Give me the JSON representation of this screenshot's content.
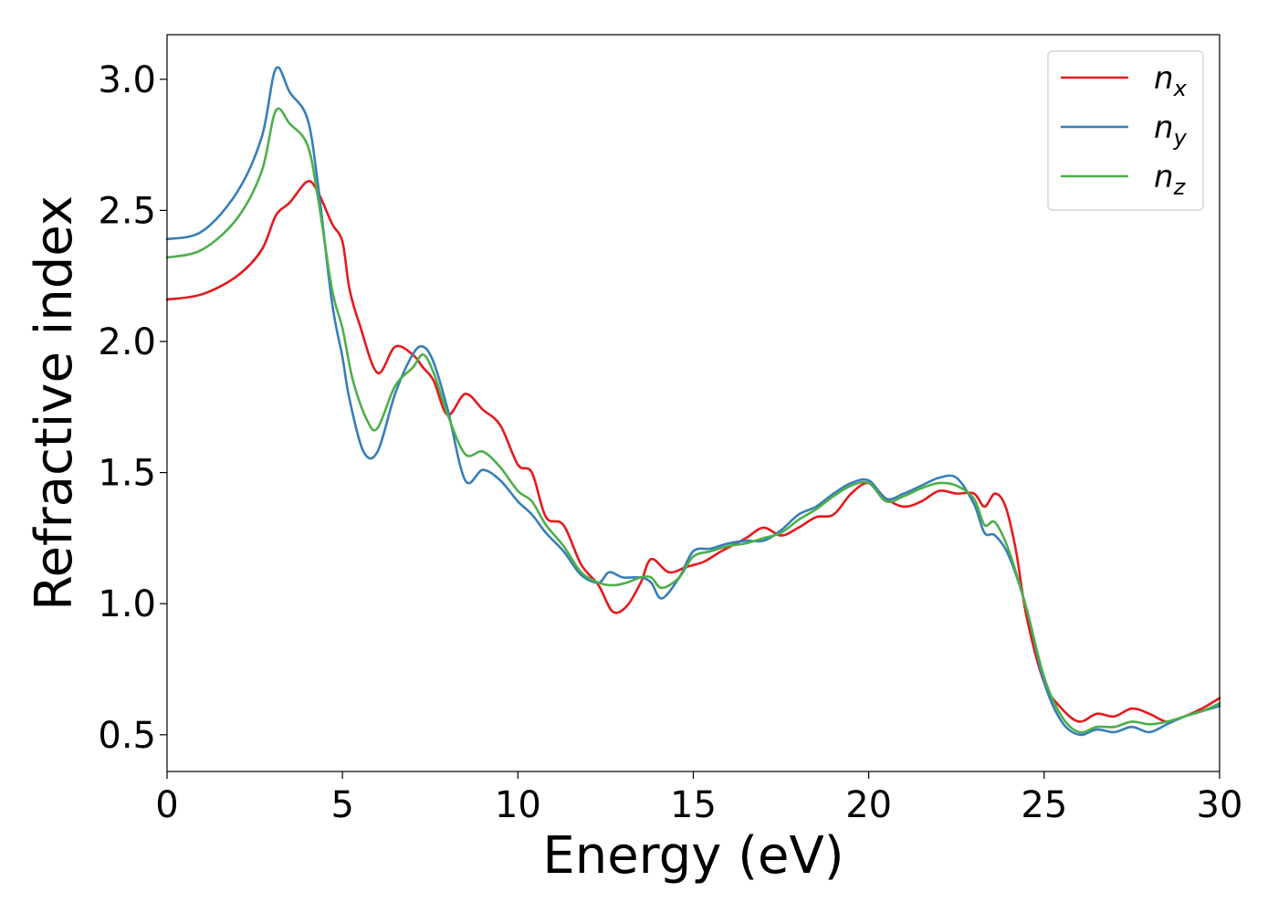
{
  "chart_data": {
    "type": "line",
    "xlabel": "Energy (eV)",
    "ylabel": "Refractive index",
    "xlim": [
      0,
      30
    ],
    "ylim": [
      0.36,
      3.17
    ],
    "xticks": [
      0,
      5,
      10,
      15,
      20,
      25,
      30
    ],
    "xtick_labels": [
      "0",
      "5",
      "10",
      "15",
      "20",
      "25",
      "30"
    ],
    "yticks": [
      0.5,
      1.0,
      1.5,
      2.0,
      2.5,
      3.0
    ],
    "ytick_labels": [
      "0.5",
      "1.0",
      "1.5",
      "2.0",
      "2.5",
      "3.0"
    ],
    "grid": false,
    "legend_position": "top-right",
    "series": [
      {
        "name": "n",
        "subscript": "x",
        "color": "#e41a1c",
        "points": [
          [
            0,
            2.16
          ],
          [
            1,
            2.18
          ],
          [
            2,
            2.25
          ],
          [
            2.7,
            2.35
          ],
          [
            3.1,
            2.48
          ],
          [
            3.5,
            2.53
          ],
          [
            4.0,
            2.61
          ],
          [
            4.3,
            2.57
          ],
          [
            4.7,
            2.45
          ],
          [
            5.0,
            2.38
          ],
          [
            5.2,
            2.2
          ],
          [
            5.5,
            2.06
          ],
          [
            6.0,
            1.88
          ],
          [
            6.5,
            1.98
          ],
          [
            7.0,
            1.95
          ],
          [
            7.3,
            1.9
          ],
          [
            7.6,
            1.85
          ],
          [
            8.0,
            1.72
          ],
          [
            8.5,
            1.8
          ],
          [
            9.0,
            1.74
          ],
          [
            9.5,
            1.68
          ],
          [
            10.0,
            1.53
          ],
          [
            10.4,
            1.5
          ],
          [
            10.8,
            1.33
          ],
          [
            11.3,
            1.3
          ],
          [
            11.8,
            1.15
          ],
          [
            12.3,
            1.07
          ],
          [
            12.7,
            0.97
          ],
          [
            13.1,
            0.99
          ],
          [
            13.5,
            1.08
          ],
          [
            13.8,
            1.17
          ],
          [
            14.3,
            1.12
          ],
          [
            14.8,
            1.14
          ],
          [
            15.3,
            1.16
          ],
          [
            15.8,
            1.2
          ],
          [
            16.5,
            1.25
          ],
          [
            17.0,
            1.29
          ],
          [
            17.5,
            1.26
          ],
          [
            18.0,
            1.29
          ],
          [
            18.5,
            1.33
          ],
          [
            19.0,
            1.34
          ],
          [
            19.5,
            1.42
          ],
          [
            20.0,
            1.46
          ],
          [
            20.5,
            1.4
          ],
          [
            21.0,
            1.37
          ],
          [
            21.5,
            1.39
          ],
          [
            22.0,
            1.43
          ],
          [
            22.5,
            1.42
          ],
          [
            23.0,
            1.42
          ],
          [
            23.3,
            1.37
          ],
          [
            23.6,
            1.42
          ],
          [
            23.9,
            1.37
          ],
          [
            24.2,
            1.2
          ],
          [
            24.5,
            0.95
          ],
          [
            25.0,
            0.7
          ],
          [
            25.5,
            0.6
          ],
          [
            26.0,
            0.55
          ],
          [
            26.5,
            0.58
          ],
          [
            27.0,
            0.57
          ],
          [
            27.5,
            0.6
          ],
          [
            28.0,
            0.58
          ],
          [
            28.5,
            0.55
          ],
          [
            29.0,
            0.57
          ],
          [
            29.5,
            0.6
          ],
          [
            30.0,
            0.64
          ]
        ]
      },
      {
        "name": "n",
        "subscript": "y",
        "color": "#377eb8",
        "points": [
          [
            0,
            2.39
          ],
          [
            1,
            2.42
          ],
          [
            2,
            2.57
          ],
          [
            2.7,
            2.78
          ],
          [
            3.1,
            3.04
          ],
          [
            3.5,
            2.95
          ],
          [
            4.0,
            2.85
          ],
          [
            4.3,
            2.6
          ],
          [
            4.7,
            2.15
          ],
          [
            5.0,
            1.94
          ],
          [
            5.2,
            1.78
          ],
          [
            5.6,
            1.58
          ],
          [
            6.0,
            1.58
          ],
          [
            6.5,
            1.8
          ],
          [
            7.0,
            1.95
          ],
          [
            7.3,
            1.98
          ],
          [
            7.6,
            1.92
          ],
          [
            8.0,
            1.74
          ],
          [
            8.5,
            1.47
          ],
          [
            9.0,
            1.51
          ],
          [
            9.5,
            1.47
          ],
          [
            10.0,
            1.39
          ],
          [
            10.4,
            1.34
          ],
          [
            10.8,
            1.27
          ],
          [
            11.3,
            1.2
          ],
          [
            11.8,
            1.11
          ],
          [
            12.3,
            1.08
          ],
          [
            12.6,
            1.12
          ],
          [
            13.0,
            1.1
          ],
          [
            13.5,
            1.1
          ],
          [
            13.8,
            1.08
          ],
          [
            14.1,
            1.02
          ],
          [
            14.6,
            1.1
          ],
          [
            15.0,
            1.2
          ],
          [
            15.5,
            1.21
          ],
          [
            16.0,
            1.23
          ],
          [
            16.5,
            1.24
          ],
          [
            17.0,
            1.24
          ],
          [
            17.5,
            1.28
          ],
          [
            18.0,
            1.34
          ],
          [
            18.5,
            1.37
          ],
          [
            19.0,
            1.42
          ],
          [
            19.5,
            1.46
          ],
          [
            20.0,
            1.47
          ],
          [
            20.5,
            1.4
          ],
          [
            21.0,
            1.42
          ],
          [
            21.5,
            1.45
          ],
          [
            22.0,
            1.48
          ],
          [
            22.5,
            1.48
          ],
          [
            23.0,
            1.38
          ],
          [
            23.3,
            1.27
          ],
          [
            23.6,
            1.26
          ],
          [
            24.0,
            1.18
          ],
          [
            24.5,
            0.98
          ],
          [
            25.0,
            0.7
          ],
          [
            25.5,
            0.55
          ],
          [
            26.0,
            0.5
          ],
          [
            26.5,
            0.52
          ],
          [
            27.0,
            0.51
          ],
          [
            27.5,
            0.53
          ],
          [
            28.0,
            0.51
          ],
          [
            28.5,
            0.54
          ],
          [
            29.0,
            0.57
          ],
          [
            29.5,
            0.59
          ],
          [
            30.0,
            0.61
          ]
        ]
      },
      {
        "name": "n",
        "subscript": "z",
        "color": "#4daf4a",
        "points": [
          [
            0,
            2.32
          ],
          [
            1,
            2.35
          ],
          [
            2,
            2.47
          ],
          [
            2.7,
            2.65
          ],
          [
            3.1,
            2.88
          ],
          [
            3.5,
            2.83
          ],
          [
            4.0,
            2.75
          ],
          [
            4.3,
            2.55
          ],
          [
            4.7,
            2.2
          ],
          [
            5.0,
            2.05
          ],
          [
            5.3,
            1.85
          ],
          [
            5.7,
            1.7
          ],
          [
            6.0,
            1.67
          ],
          [
            6.5,
            1.83
          ],
          [
            7.0,
            1.9
          ],
          [
            7.3,
            1.95
          ],
          [
            7.6,
            1.88
          ],
          [
            8.0,
            1.72
          ],
          [
            8.5,
            1.57
          ],
          [
            9.0,
            1.58
          ],
          [
            9.5,
            1.52
          ],
          [
            10.0,
            1.43
          ],
          [
            10.4,
            1.39
          ],
          [
            10.8,
            1.3
          ],
          [
            11.3,
            1.22
          ],
          [
            11.8,
            1.12
          ],
          [
            12.3,
            1.08
          ],
          [
            12.7,
            1.07
          ],
          [
            13.1,
            1.08
          ],
          [
            13.5,
            1.1
          ],
          [
            13.8,
            1.1
          ],
          [
            14.1,
            1.06
          ],
          [
            14.6,
            1.1
          ],
          [
            15.0,
            1.18
          ],
          [
            15.5,
            1.2
          ],
          [
            16.0,
            1.22
          ],
          [
            16.5,
            1.23
          ],
          [
            17.0,
            1.25
          ],
          [
            17.5,
            1.27
          ],
          [
            18.0,
            1.32
          ],
          [
            18.5,
            1.36
          ],
          [
            19.0,
            1.41
          ],
          [
            19.5,
            1.45
          ],
          [
            20.0,
            1.46
          ],
          [
            20.5,
            1.39
          ],
          [
            21.0,
            1.41
          ],
          [
            21.5,
            1.44
          ],
          [
            22.0,
            1.46
          ],
          [
            22.5,
            1.45
          ],
          [
            23.0,
            1.4
          ],
          [
            23.3,
            1.3
          ],
          [
            23.6,
            1.31
          ],
          [
            24.0,
            1.2
          ],
          [
            24.5,
            0.98
          ],
          [
            25.0,
            0.72
          ],
          [
            25.5,
            0.57
          ],
          [
            26.0,
            0.51
          ],
          [
            26.5,
            0.53
          ],
          [
            27.0,
            0.53
          ],
          [
            27.5,
            0.55
          ],
          [
            28.0,
            0.54
          ],
          [
            28.5,
            0.55
          ],
          [
            29.0,
            0.57
          ],
          [
            29.5,
            0.59
          ],
          [
            30.0,
            0.62
          ]
        ]
      }
    ]
  }
}
